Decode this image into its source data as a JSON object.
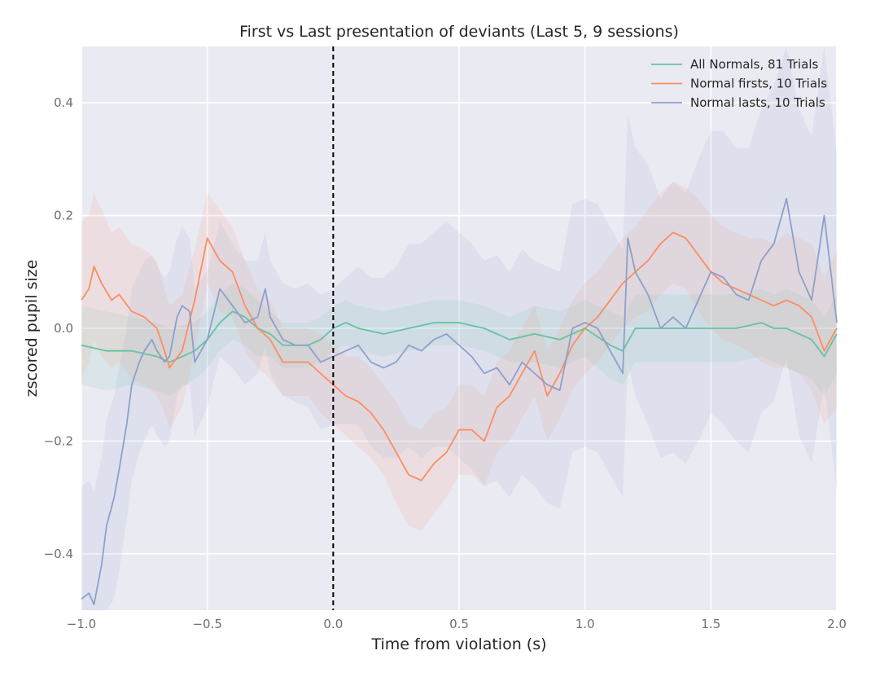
{
  "chart_data": {
    "type": "line",
    "title": "First vs Last presentation of deviants (Last 5, 9 sessions)",
    "xlabel": "Time from violation (s)",
    "ylabel": "zscored pupil size",
    "xlim": [
      -1.0,
      2.0
    ],
    "ylim": [
      -0.5,
      0.5
    ],
    "x_ticks": [
      -1.0,
      -0.5,
      0.0,
      0.5,
      1.0,
      1.5,
      2.0
    ],
    "x_tick_labels": [
      "−1.0",
      "−0.5",
      "0.0",
      "0.5",
      "1.0",
      "1.5",
      "2.0"
    ],
    "y_ticks": [
      -0.4,
      -0.2,
      0.0,
      0.2,
      0.4
    ],
    "y_tick_labels": [
      "−0.4",
      "−0.2",
      "0.0",
      "0.2",
      "0.4"
    ],
    "grid": true,
    "legend_position": "top-right",
    "vline": {
      "x": 0.0,
      "style": "dashed",
      "color": "#000000"
    },
    "series": [
      {
        "name": "All Normals, 81 Trials",
        "color": "#66c2a5",
        "x": [
          -1.0,
          -0.9,
          -0.8,
          -0.7,
          -0.65,
          -0.55,
          -0.5,
          -0.45,
          -0.4,
          -0.35,
          -0.3,
          -0.25,
          -0.2,
          -0.15,
          -0.1,
          -0.05,
          0.0,
          0.05,
          0.1,
          0.2,
          0.3,
          0.4,
          0.5,
          0.6,
          0.7,
          0.8,
          0.9,
          1.0,
          1.1,
          1.15,
          1.2,
          1.3,
          1.4,
          1.5,
          1.6,
          1.7,
          1.75,
          1.8,
          1.9,
          1.95,
          2.0
        ],
        "y": [
          -0.03,
          -0.04,
          -0.04,
          -0.05,
          -0.06,
          -0.04,
          -0.02,
          0.01,
          0.03,
          0.02,
          0.0,
          -0.01,
          -0.03,
          -0.03,
          -0.03,
          -0.02,
          0.0,
          0.01,
          0.0,
          -0.01,
          0.0,
          0.01,
          0.01,
          0.0,
          -0.02,
          -0.01,
          -0.02,
          0.0,
          -0.03,
          -0.04,
          0.0,
          0.0,
          0.0,
          0.0,
          0.0,
          0.01,
          0.0,
          0.0,
          -0.02,
          -0.05,
          -0.01
        ],
        "band": [
          0.07,
          0.07,
          0.06,
          0.06,
          0.06,
          0.05,
          0.05,
          0.05,
          0.05,
          0.05,
          0.05,
          0.04,
          0.04,
          0.04,
          0.04,
          0.04,
          0.04,
          0.04,
          0.04,
          0.04,
          0.04,
          0.04,
          0.04,
          0.04,
          0.04,
          0.05,
          0.05,
          0.05,
          0.06,
          0.06,
          0.06,
          0.06,
          0.06,
          0.06,
          0.06,
          0.06,
          0.06,
          0.07,
          0.07,
          0.07,
          0.07
        ]
      },
      {
        "name": "Normal firsts, 10 Trials",
        "color": "#fc8d62",
        "x": [
          -1.0,
          -0.97,
          -0.95,
          -0.92,
          -0.88,
          -0.85,
          -0.8,
          -0.75,
          -0.7,
          -0.67,
          -0.65,
          -0.6,
          -0.55,
          -0.5,
          -0.45,
          -0.4,
          -0.35,
          -0.3,
          -0.25,
          -0.2,
          -0.15,
          -0.1,
          -0.05,
          0.0,
          0.05,
          0.1,
          0.15,
          0.2,
          0.25,
          0.3,
          0.35,
          0.4,
          0.45,
          0.5,
          0.55,
          0.6,
          0.65,
          0.7,
          0.75,
          0.8,
          0.85,
          0.9,
          0.95,
          1.0,
          1.05,
          1.1,
          1.15,
          1.2,
          1.25,
          1.3,
          1.35,
          1.4,
          1.45,
          1.5,
          1.55,
          1.6,
          1.65,
          1.7,
          1.75,
          1.8,
          1.85,
          1.9,
          1.95,
          2.0
        ],
        "y": [
          0.05,
          0.07,
          0.11,
          0.08,
          0.05,
          0.06,
          0.03,
          0.02,
          0.0,
          -0.04,
          -0.07,
          -0.04,
          0.05,
          0.16,
          0.12,
          0.1,
          0.04,
          0.0,
          -0.02,
          -0.06,
          -0.06,
          -0.06,
          -0.08,
          -0.1,
          -0.12,
          -0.13,
          -0.15,
          -0.18,
          -0.22,
          -0.26,
          -0.27,
          -0.24,
          -0.22,
          -0.18,
          -0.18,
          -0.2,
          -0.14,
          -0.12,
          -0.08,
          -0.04,
          -0.12,
          -0.08,
          -0.03,
          0.0,
          0.02,
          0.05,
          0.08,
          0.1,
          0.12,
          0.15,
          0.17,
          0.16,
          0.13,
          0.1,
          0.08,
          0.07,
          0.06,
          0.05,
          0.04,
          0.05,
          0.04,
          0.02,
          -0.04,
          0.0
        ],
        "band": [
          0.14,
          0.13,
          0.13,
          0.13,
          0.12,
          0.12,
          0.12,
          0.12,
          0.12,
          0.11,
          0.11,
          0.1,
          0.09,
          0.08,
          0.09,
          0.08,
          0.08,
          0.07,
          0.07,
          0.06,
          0.06,
          0.06,
          0.07,
          0.07,
          0.07,
          0.08,
          0.08,
          0.08,
          0.09,
          0.09,
          0.09,
          0.09,
          0.08,
          0.08,
          0.08,
          0.08,
          0.08,
          0.08,
          0.08,
          0.08,
          0.08,
          0.08,
          0.08,
          0.08,
          0.08,
          0.08,
          0.08,
          0.08,
          0.09,
          0.09,
          0.09,
          0.09,
          0.1,
          0.1,
          0.1,
          0.1,
          0.1,
          0.11,
          0.11,
          0.12,
          0.12,
          0.13,
          0.13,
          0.14
        ]
      },
      {
        "name": "Normal lasts, 10 Trials",
        "color": "#8da0cb",
        "x": [
          -1.0,
          -0.97,
          -0.95,
          -0.92,
          -0.9,
          -0.87,
          -0.85,
          -0.82,
          -0.8,
          -0.77,
          -0.75,
          -0.72,
          -0.7,
          -0.67,
          -0.65,
          -0.62,
          -0.6,
          -0.57,
          -0.55,
          -0.5,
          -0.45,
          -0.4,
          -0.35,
          -0.3,
          -0.27,
          -0.25,
          -0.2,
          -0.15,
          -0.1,
          -0.05,
          0.0,
          0.05,
          0.1,
          0.15,
          0.2,
          0.25,
          0.3,
          0.35,
          0.4,
          0.45,
          0.5,
          0.55,
          0.6,
          0.65,
          0.7,
          0.75,
          0.8,
          0.85,
          0.9,
          0.95,
          1.0,
          1.05,
          1.1,
          1.15,
          1.17,
          1.2,
          1.25,
          1.3,
          1.35,
          1.4,
          1.45,
          1.5,
          1.55,
          1.6,
          1.65,
          1.7,
          1.75,
          1.8,
          1.85,
          1.9,
          1.95,
          2.0
        ],
        "y": [
          -0.48,
          -0.47,
          -0.49,
          -0.42,
          -0.35,
          -0.3,
          -0.25,
          -0.17,
          -0.1,
          -0.06,
          -0.04,
          -0.02,
          -0.04,
          -0.06,
          -0.05,
          0.02,
          0.04,
          0.03,
          -0.06,
          -0.02,
          0.07,
          0.04,
          0.01,
          0.02,
          0.07,
          0.02,
          -0.02,
          -0.03,
          -0.03,
          -0.06,
          -0.05,
          -0.04,
          -0.03,
          -0.06,
          -0.07,
          -0.06,
          -0.03,
          -0.04,
          -0.02,
          -0.01,
          -0.03,
          -0.05,
          -0.08,
          -0.07,
          -0.1,
          -0.06,
          -0.08,
          -0.1,
          -0.11,
          0.0,
          0.01,
          0.0,
          -0.04,
          -0.08,
          0.16,
          0.1,
          0.06,
          0.0,
          0.02,
          0.0,
          0.05,
          0.1,
          0.09,
          0.06,
          0.05,
          0.12,
          0.15,
          0.23,
          0.1,
          0.05,
          0.2,
          0.01
        ],
        "band": [
          0.2,
          0.2,
          0.2,
          0.19,
          0.19,
          0.18,
          0.18,
          0.17,
          0.17,
          0.16,
          0.16,
          0.15,
          0.15,
          0.15,
          0.15,
          0.14,
          0.14,
          0.13,
          0.13,
          0.12,
          0.12,
          0.11,
          0.11,
          0.1,
          0.1,
          0.1,
          0.1,
          0.1,
          0.11,
          0.12,
          0.12,
          0.13,
          0.14,
          0.15,
          0.16,
          0.17,
          0.18,
          0.19,
          0.19,
          0.2,
          0.2,
          0.2,
          0.2,
          0.2,
          0.2,
          0.2,
          0.2,
          0.21,
          0.21,
          0.22,
          0.22,
          0.22,
          0.22,
          0.22,
          0.22,
          0.22,
          0.23,
          0.23,
          0.24,
          0.24,
          0.25,
          0.25,
          0.26,
          0.26,
          0.27,
          0.27,
          0.28,
          0.28,
          0.29,
          0.29,
          0.3,
          0.3
        ]
      }
    ]
  }
}
